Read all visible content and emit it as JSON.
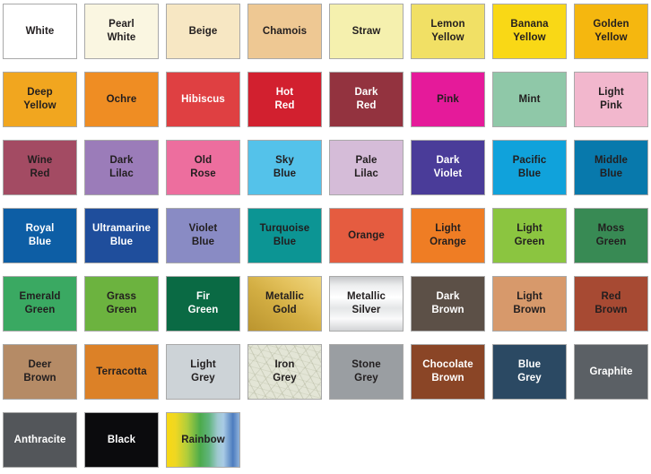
{
  "page": {
    "background_color": "#FFFFFF",
    "swatch_border_color": "#A9A9A9",
    "dark_label_color": "#221E1F",
    "light_label_color": "#FFFFFF"
  },
  "palette": {
    "columns": 8,
    "swatches": [
      {
        "label": "White",
        "color": "#FFFFFF",
        "text_color": "#221E1F"
      },
      {
        "label": "Pearl White",
        "color": "#FAF6E1",
        "text_color": "#221E1F"
      },
      {
        "label": "Beige",
        "color": "#F7E7C3",
        "text_color": "#221E1F"
      },
      {
        "label": "Chamois",
        "color": "#EEC893",
        "text_color": "#221E1F"
      },
      {
        "label": "Straw",
        "color": "#F5F0AE",
        "text_color": "#221E1F"
      },
      {
        "label": "Lemon Yellow",
        "color": "#F1E065",
        "text_color": "#221E1F"
      },
      {
        "label": "Banana Yellow",
        "color": "#F9D816",
        "text_color": "#221E1F"
      },
      {
        "label": "Golden Yellow",
        "color": "#F5B70F",
        "text_color": "#221E1F"
      },
      {
        "label": "Deep Yellow",
        "color": "#F1A61F",
        "text_color": "#221E1F"
      },
      {
        "label": "Ochre",
        "color": "#EF8D23",
        "text_color": "#221E1F"
      },
      {
        "label": "Hibiscus",
        "color": "#DF4042",
        "text_color": "#FFFFFF"
      },
      {
        "label": "Hot Red",
        "color": "#D2202F",
        "text_color": "#FFFFFF"
      },
      {
        "label": "Dark Red",
        "color": "#93333F",
        "text_color": "#FFFFFF"
      },
      {
        "label": "Pink",
        "color": "#E51A9A",
        "text_color": "#221E1F"
      },
      {
        "label": "Mint",
        "color": "#8FC8A8",
        "text_color": "#221E1F"
      },
      {
        "label": "Light Pink",
        "color": "#F2B7CD",
        "text_color": "#221E1F"
      },
      {
        "label": "Wine Red",
        "color": "#A34B63",
        "text_color": "#221E1F"
      },
      {
        "label": "Dark Lilac",
        "color": "#9B7CB9",
        "text_color": "#221E1F"
      },
      {
        "label": "Old Rose",
        "color": "#ED6E9E",
        "text_color": "#221E1F"
      },
      {
        "label": "Sky Blue",
        "color": "#54C2EA",
        "text_color": "#221E1F"
      },
      {
        "label": "Pale Lilac",
        "color": "#D5BCD8",
        "text_color": "#221E1F"
      },
      {
        "label": "Dark Violet",
        "color": "#4A3C99",
        "text_color": "#FFFFFF"
      },
      {
        "label": "Pacific Blue",
        "color": "#10A2DB",
        "text_color": "#221E1F"
      },
      {
        "label": "Middle Blue",
        "color": "#0879AC",
        "text_color": "#221E1F"
      },
      {
        "label": "Royal Blue",
        "color": "#0D5EA5",
        "text_color": "#FFFFFF"
      },
      {
        "label": "Ultramarine Blue",
        "color": "#1F4E9C",
        "text_color": "#FFFFFF"
      },
      {
        "label": "Violet Blue",
        "color": "#898BC4",
        "text_color": "#221E1F"
      },
      {
        "label": "Turquoise Blue",
        "color": "#0C9594",
        "text_color": "#221E1F"
      },
      {
        "label": "Orange",
        "color": "#E55C40",
        "text_color": "#221E1F"
      },
      {
        "label": "Light Orange",
        "color": "#EF7D24",
        "text_color": "#221E1F"
      },
      {
        "label": "Light Green",
        "color": "#8BC540",
        "text_color": "#221E1F"
      },
      {
        "label": "Moss Green",
        "color": "#388A54",
        "text_color": "#221E1F"
      },
      {
        "label": "Emerald Green",
        "color": "#3AA962",
        "text_color": "#221E1F"
      },
      {
        "label": "Grass Green",
        "color": "#6CB33F",
        "text_color": "#221E1F"
      },
      {
        "label": "Fir Green",
        "color": "#0A6A44",
        "text_color": "#FFFFFF"
      },
      {
        "label": "Metallic Gold",
        "color": "#D3AE43",
        "text_color": "#221E1F",
        "texture": "gold"
      },
      {
        "label": "Metallic Silver",
        "color": "#EDEEEF",
        "text_color": "#221E1F",
        "texture": "silver"
      },
      {
        "label": "Dark Brown",
        "color": "#5C5047",
        "text_color": "#FFFFFF"
      },
      {
        "label": "Light Brown",
        "color": "#D7996B",
        "text_color": "#221E1F"
      },
      {
        "label": "Red Brown",
        "color": "#A74A33",
        "text_color": "#221E1F"
      },
      {
        "label": "Deer Brown",
        "color": "#B58B66",
        "text_color": "#221E1F"
      },
      {
        "label": "Terracotta",
        "color": "#DC8127",
        "text_color": "#221E1F"
      },
      {
        "label": "Light Grey",
        "color": "#CDD3D7",
        "text_color": "#221E1F"
      },
      {
        "label": "Iron Grey",
        "color": "#E3E5D6",
        "text_color": "#221E1F",
        "texture": "marble"
      },
      {
        "label": "Stone Grey",
        "color": "#9A9EA2",
        "text_color": "#221E1F"
      },
      {
        "label": "Chocolate Brown",
        "color": "#8A4526",
        "text_color": "#FFFFFF"
      },
      {
        "label": "Blue Grey",
        "color": "#2B4963",
        "text_color": "#FFFFFF"
      },
      {
        "label": "Graphite",
        "color": "#5B6065",
        "text_color": "#FFFFFF"
      },
      {
        "label": "Anthracite",
        "color": "#53565A",
        "text_color": "#FFFFFF"
      },
      {
        "label": "Black",
        "color": "#0B0B0D",
        "text_color": "#FFFFFF"
      },
      {
        "label": "Rainbow",
        "color": "#43A64C",
        "text_color": "#221E1F",
        "texture": "rainbow"
      }
    ]
  }
}
